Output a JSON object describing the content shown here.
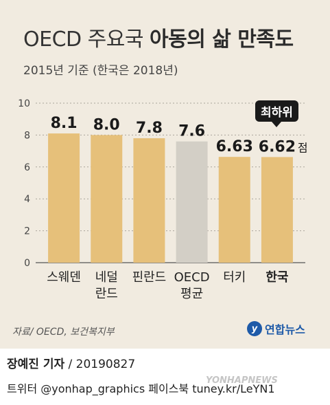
{
  "header": {
    "title_light": "OECD 주요국",
    "title_bold": "아동의 삶 만족도",
    "subtitle": "2015년 기준 (한국은 2018년)"
  },
  "annotation": {
    "tag": "최하위",
    "unit": "점"
  },
  "footer": {
    "source": "자료/ OECD, 보건복지부",
    "logo_text": "연합뉴스",
    "reporter": "장예진 기자",
    "date": "/ 20190827",
    "social": "트위터 @yonhap_graphics  페이스북 tuney.kr/LeYN1",
    "watermark": "YONHAPNEWS"
  },
  "colors": {
    "bar": "#e6c07a",
    "bar_avg": "#d3cfc6",
    "background": "#f1ebe0"
  },
  "chart_data": {
    "type": "bar",
    "title": "OECD 주요국 아동의 삶 만족도",
    "categories": [
      "스웨덴",
      "네덜란드",
      "핀란드",
      "OECD 평균",
      "터키",
      "한국"
    ],
    "category_lines": [
      [
        "스웨덴"
      ],
      [
        "네덜",
        "란드"
      ],
      [
        "핀란드"
      ],
      [
        "OECD",
        "평균"
      ],
      [
        "터키"
      ],
      [
        "한국"
      ]
    ],
    "values": [
      8.1,
      8.0,
      7.8,
      7.6,
      6.63,
      6.62
    ],
    "value_labels": [
      "8.1",
      "8.0",
      "7.8",
      "7.6",
      "6.63",
      "6.62"
    ],
    "ylim": [
      0,
      10
    ],
    "yticks": [
      0,
      2,
      4,
      6,
      8,
      10
    ],
    "highlight_index": 5,
    "average_index": 3
  }
}
